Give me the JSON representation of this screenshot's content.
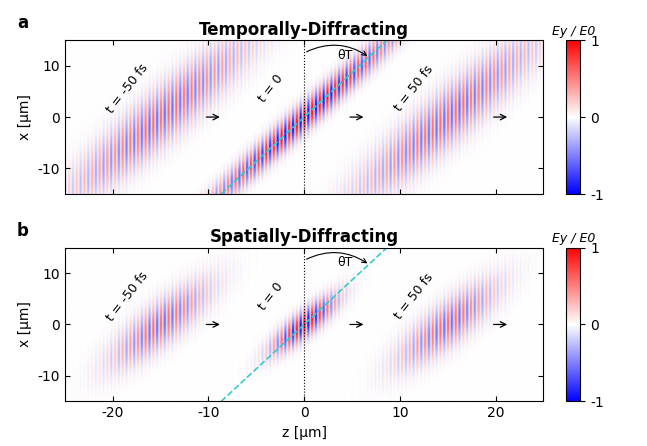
{
  "chart_data": [
    {
      "type": "heatmap",
      "panel": "a",
      "title": "Temporally-Diffracting",
      "y_label": "x [µm]",
      "tick_labels": "y",
      "xlim": [
        -25,
        25
      ],
      "xticks": [
        -20,
        -10,
        0,
        10,
        20
      ],
      "ylim": [
        -15,
        15
      ],
      "yticks": [
        -10,
        0,
        10
      ],
      "tilt_deg": 30,
      "tilt_label": "θT",
      "wavelength": 0.8,
      "pulses": [
        {
          "label": "t = -50 fs",
          "z_center": -15,
          "amplitude": 0.6,
          "width_along": 18,
          "width_across": 3.0
        },
        {
          "label": "t = 0",
          "z_center": 0,
          "amplitude": 1.0,
          "width_along": 20,
          "width_across": 1.5
        },
        {
          "label": "t = 50 fs",
          "z_center": 15,
          "amplitude": 0.6,
          "width_along": 18,
          "width_across": 3.0
        }
      ],
      "colorbar": {
        "label": "Ey / E0",
        "range": [
          -1,
          1
        ],
        "ticks": [
          -1,
          0,
          1
        ]
      }
    },
    {
      "type": "heatmap",
      "panel": "b",
      "title": "Spatially-Diffracting",
      "x_label": "z [µm]",
      "y_label": "x [µm]",
      "xlim": [
        -25,
        25
      ],
      "xticks": [
        -20,
        -10,
        0,
        10,
        20
      ],
      "ylim": [
        -15,
        15
      ],
      "yticks": [
        -10,
        0,
        10
      ],
      "tilt_deg": 30,
      "tilt_label": "θT",
      "wavelength": 0.8,
      "pulses": [
        {
          "label": "t = -50 fs",
          "z_center": -15,
          "amplitude": 0.6,
          "width_along": 9,
          "width_across": 2.5
        },
        {
          "label": "t = 0",
          "z_center": 0,
          "amplitude": 1.0,
          "width_along": 6,
          "width_across": 1.5
        },
        {
          "label": "t = 50 fs",
          "z_center": 15,
          "amplitude": 0.6,
          "width_along": 9,
          "width_across": 2.5
        }
      ],
      "colorbar": {
        "label": "Ey / E0",
        "range": [
          -1,
          1
        ],
        "ticks": [
          -1,
          0,
          1
        ]
      }
    }
  ]
}
